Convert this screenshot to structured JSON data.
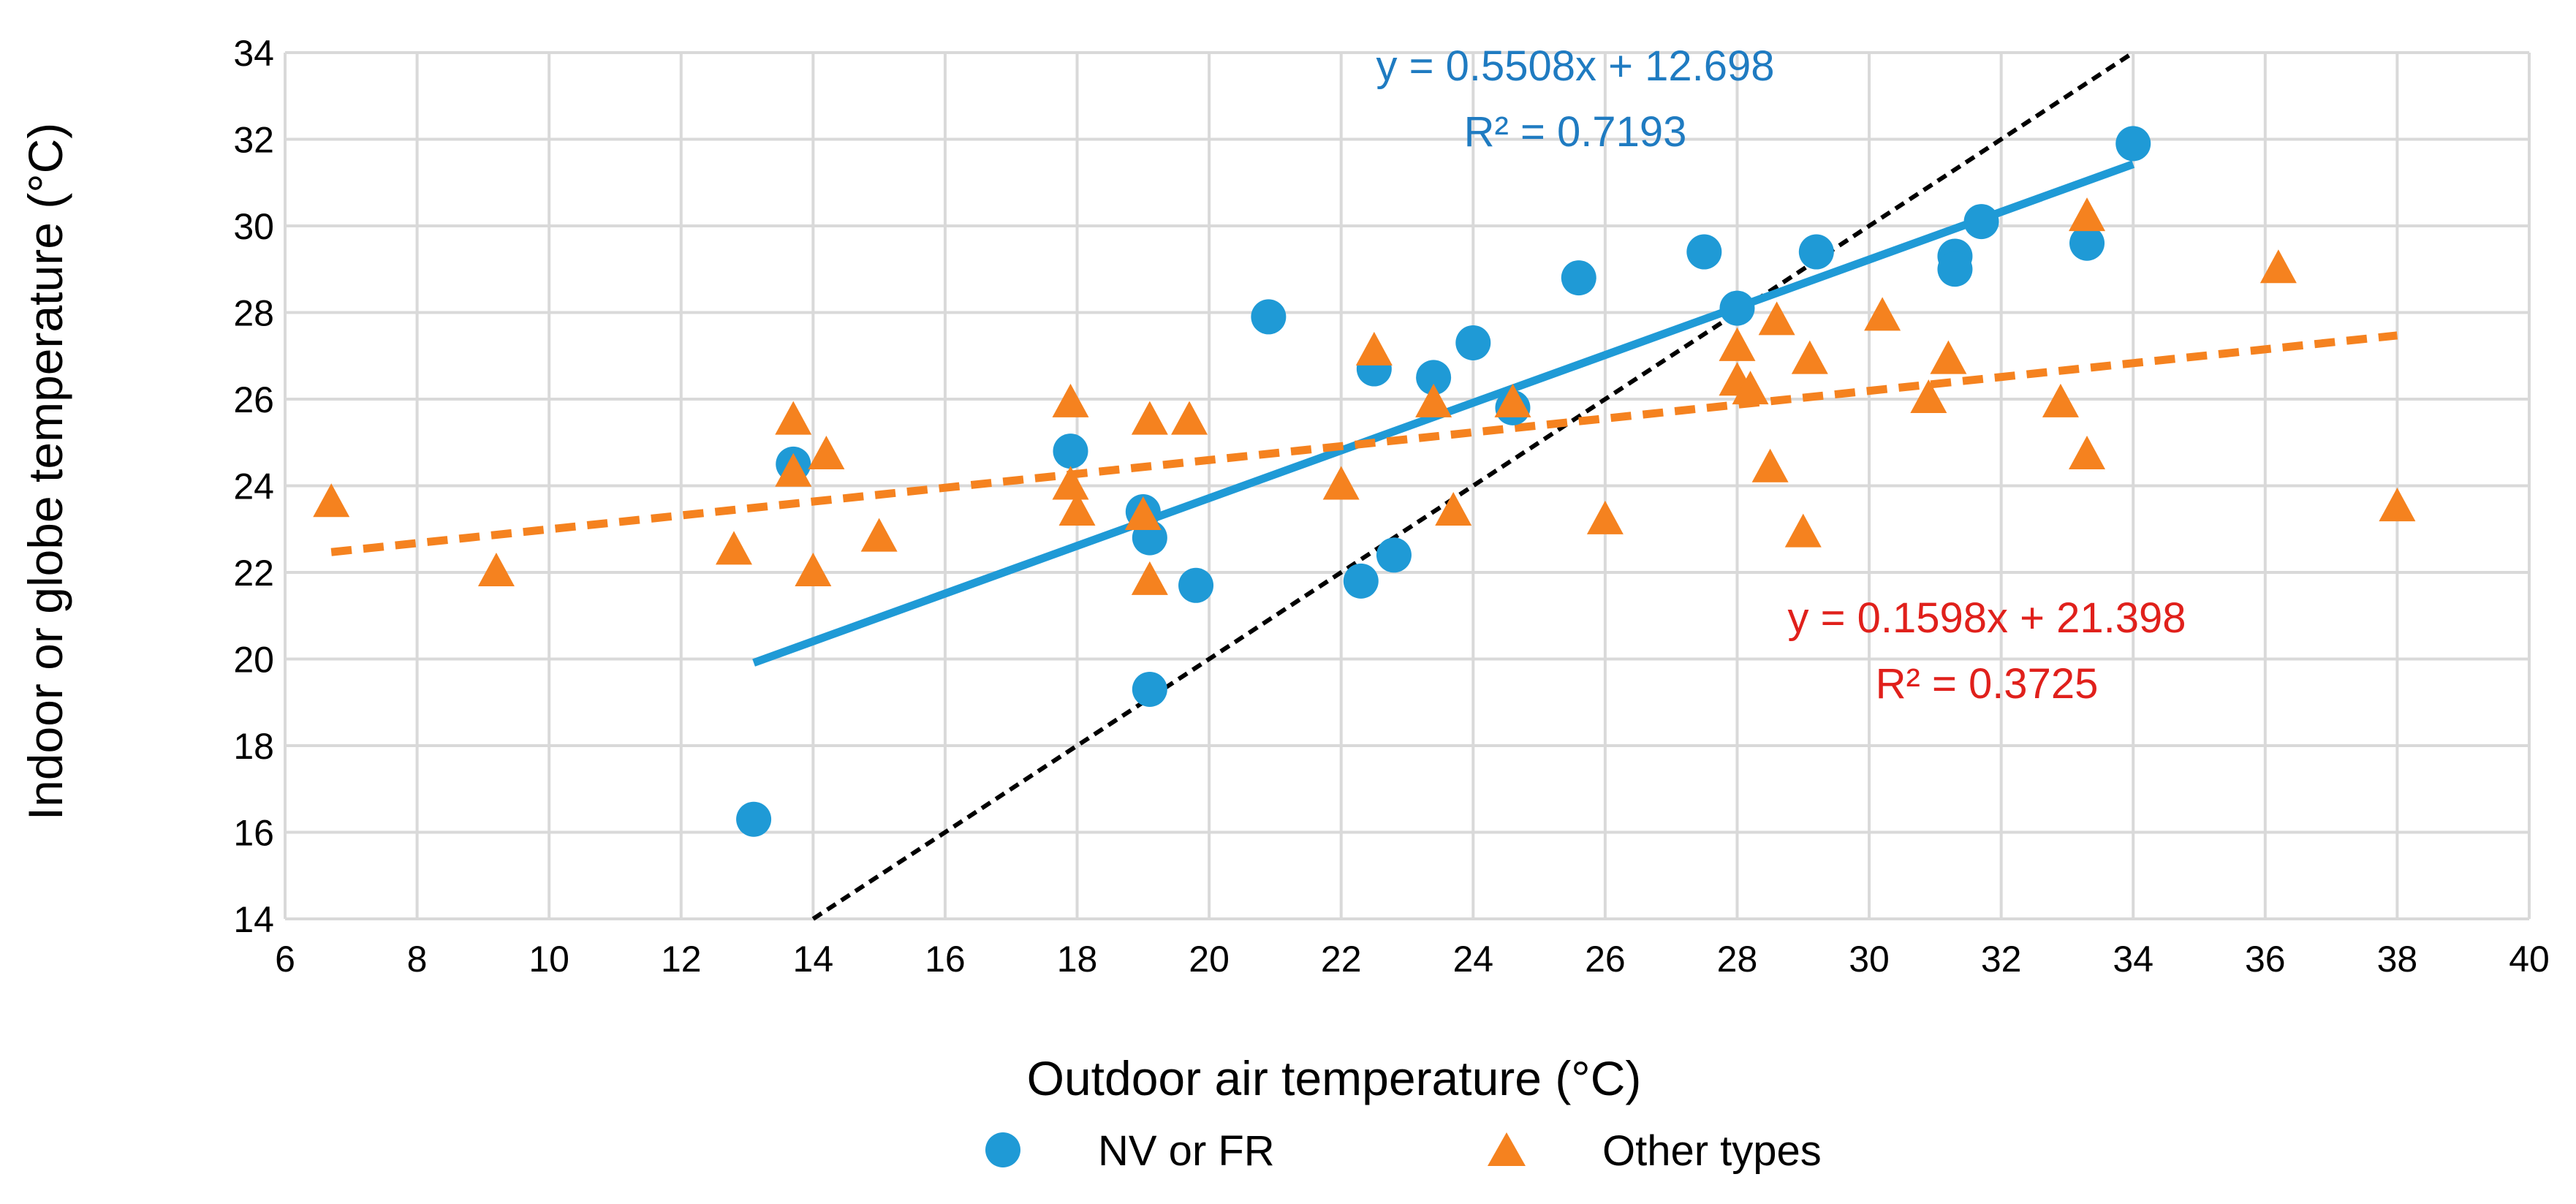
{
  "chart_data": {
    "type": "scatter",
    "xlabel": "Outdoor air temperature  (°C)",
    "ylabel": "Indoor or globe temperature (°C)",
    "xlim": [
      6,
      40
    ],
    "ylim": [
      14,
      34
    ],
    "x_ticks": [
      6,
      8,
      10,
      12,
      14,
      16,
      18,
      20,
      22,
      24,
      26,
      28,
      30,
      32,
      34,
      36,
      38,
      40
    ],
    "y_ticks": [
      14,
      16,
      18,
      20,
      22,
      24,
      26,
      28,
      30,
      32,
      34
    ],
    "grid": true,
    "legend_position": "bottom",
    "colors": {
      "nv_fr": "#1f9ad6",
      "other": "#f5821f",
      "eq_nv": "#1f7bc1",
      "eq_other": "#e0201b",
      "identity": "#000000",
      "grid": "#d9d9d9"
    },
    "series": [
      {
        "name": "NV or FR",
        "marker": "circle",
        "points": [
          [
            13.1,
            16.3
          ],
          [
            13.7,
            24.5
          ],
          [
            17.9,
            24.8
          ],
          [
            19.0,
            23.4
          ],
          [
            19.1,
            22.8
          ],
          [
            19.1,
            19.3
          ],
          [
            19.8,
            21.7
          ],
          [
            20.9,
            27.9
          ],
          [
            22.3,
            21.8
          ],
          [
            22.5,
            26.7
          ],
          [
            22.8,
            22.4
          ],
          [
            23.4,
            26.5
          ],
          [
            24.0,
            27.3
          ],
          [
            24.6,
            25.8
          ],
          [
            25.6,
            28.8
          ],
          [
            27.5,
            29.4
          ],
          [
            28.0,
            28.1
          ],
          [
            29.2,
            29.4
          ],
          [
            31.3,
            29.3
          ],
          [
            31.3,
            29.0
          ],
          [
            31.7,
            30.1
          ],
          [
            33.3,
            29.6
          ],
          [
            34.0,
            31.9
          ]
        ],
        "trendline": {
          "slope": 0.5508,
          "intercept": 12.698,
          "x_range": [
            13.1,
            34.0
          ],
          "style": "solid"
        },
        "equation": "y = 0.5508x + 12.698",
        "r2": "R² = 0.7193"
      },
      {
        "name": "Other types",
        "marker": "triangle",
        "points": [
          [
            6.7,
            23.6
          ],
          [
            9.2,
            22.0
          ],
          [
            12.8,
            22.5
          ],
          [
            13.7,
            25.5
          ],
          [
            13.7,
            24.3
          ],
          [
            14.0,
            22.0
          ],
          [
            14.2,
            24.7
          ],
          [
            15.0,
            22.8
          ],
          [
            17.9,
            25.9
          ],
          [
            17.9,
            24.0
          ],
          [
            18.0,
            23.4
          ],
          [
            19.0,
            23.3
          ],
          [
            19.1,
            25.5
          ],
          [
            19.1,
            21.8
          ],
          [
            19.7,
            25.5
          ],
          [
            22.0,
            24.0
          ],
          [
            22.5,
            27.1
          ],
          [
            23.4,
            25.9
          ],
          [
            23.7,
            23.4
          ],
          [
            24.6,
            25.9
          ],
          [
            26.0,
            23.2
          ],
          [
            28.0,
            27.2
          ],
          [
            28.0,
            26.4
          ],
          [
            28.2,
            26.2
          ],
          [
            28.5,
            24.4
          ],
          [
            28.6,
            27.8
          ],
          [
            29.0,
            22.9
          ],
          [
            29.1,
            26.9
          ],
          [
            30.2,
            27.9
          ],
          [
            30.9,
            26.0
          ],
          [
            31.2,
            26.9
          ],
          [
            32.9,
            25.9
          ],
          [
            33.3,
            30.2
          ],
          [
            33.3,
            24.7
          ],
          [
            36.2,
            29.0
          ],
          [
            38.0,
            23.5
          ]
        ],
        "trendline": {
          "slope": 0.1598,
          "intercept": 21.398,
          "x_range": [
            6.7,
            38.0
          ],
          "style": "dashed"
        },
        "equation": "y = 0.1598x + 21.398",
        "r2": "R² = 0.3725"
      }
    ],
    "reference_line": {
      "name": "1:1 line",
      "style": "dotted",
      "points": [
        [
          14,
          14
        ],
        [
          34,
          34
        ]
      ]
    }
  }
}
